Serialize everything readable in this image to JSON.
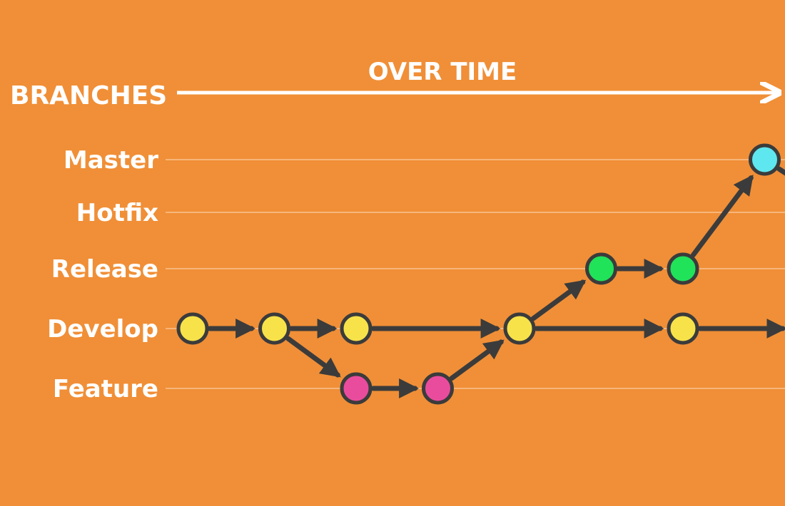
{
  "header": {
    "title": "BRANCHES",
    "timeline_label": "OVER TIME"
  },
  "lanes": [
    {
      "id": "master",
      "label": "Master"
    },
    {
      "id": "hotfix",
      "label": "Hotfix"
    },
    {
      "id": "release",
      "label": "Release"
    },
    {
      "id": "develop",
      "label": "Develop"
    },
    {
      "id": "feature",
      "label": "Feature"
    }
  ],
  "colors": {
    "background": "#f08f37",
    "lane_line": "#f7b57a",
    "edge": "#3b3b3b",
    "master": "#5ee7ef",
    "hotfix": "#e3141c",
    "release": "#20e35a",
    "develop": "#f7e24a",
    "feature": "#ea4c9d"
  },
  "commits": [
    {
      "id": "d1",
      "lane": "develop",
      "order": 1
    },
    {
      "id": "d2",
      "lane": "develop",
      "order": 2
    },
    {
      "id": "f1",
      "lane": "feature",
      "order": 3
    },
    {
      "id": "d3",
      "lane": "develop",
      "order": 3
    },
    {
      "id": "f2",
      "lane": "feature",
      "order": 4
    },
    {
      "id": "d4",
      "lane": "develop",
      "order": 5
    },
    {
      "id": "r1",
      "lane": "release",
      "order": 6
    },
    {
      "id": "r2",
      "lane": "release",
      "order": 7
    },
    {
      "id": "d5",
      "lane": "develop",
      "order": 7
    },
    {
      "id": "m1",
      "lane": "master",
      "order": 8
    },
    {
      "id": "h1",
      "lane": "hotfix",
      "order": 9
    },
    {
      "id": "d6",
      "lane": "develop",
      "order": 8.5
    },
    {
      "id": "d7",
      "lane": "develop",
      "order": 10
    }
  ],
  "edges": [
    [
      "d1",
      "d2"
    ],
    [
      "d2",
      "d3"
    ],
    [
      "d2",
      "f1"
    ],
    [
      "f1",
      "f2"
    ],
    [
      "d3",
      "d4"
    ],
    [
      "f2",
      "d4"
    ],
    [
      "d4",
      "r1"
    ],
    [
      "d4",
      "d5"
    ],
    [
      "r1",
      "r2"
    ],
    [
      "r2",
      "m1"
    ],
    [
      "m1",
      "h1"
    ],
    [
      "d5",
      "d6"
    ],
    [
      "d6",
      "d7"
    ],
    [
      "h1",
      "d7"
    ]
  ]
}
